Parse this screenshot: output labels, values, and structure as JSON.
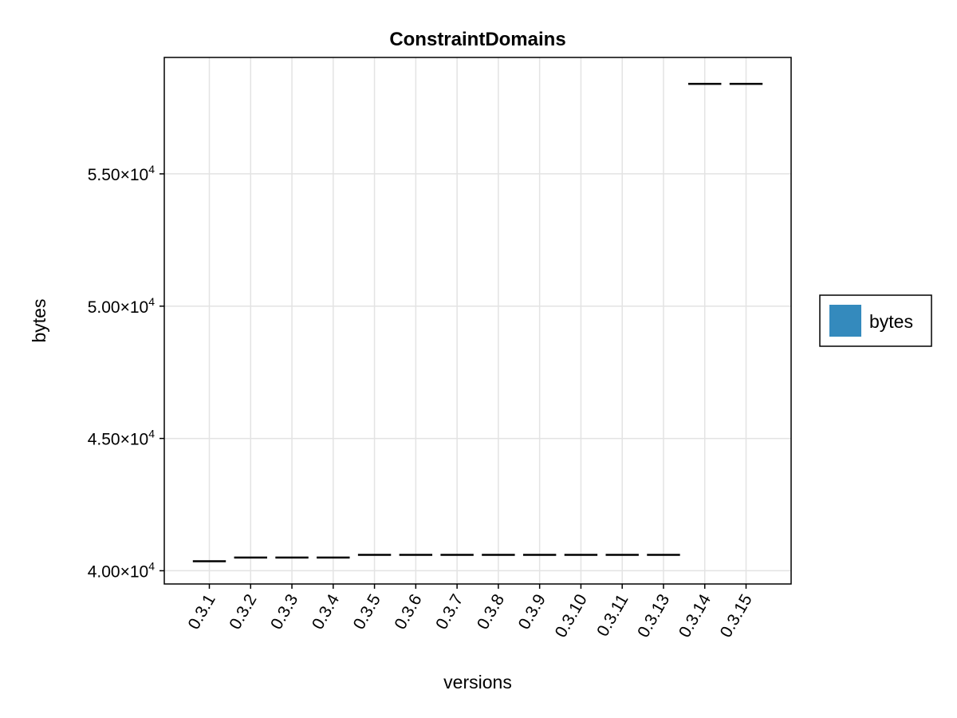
{
  "chart_data": {
    "type": "box",
    "title": "ConstraintDomains",
    "xlabel": "versions",
    "ylabel": "bytes",
    "categories": [
      "0.3.1",
      "0.3.2",
      "0.3.3",
      "0.3.4",
      "0.3.5",
      "0.3.6",
      "0.3.7",
      "0.3.8",
      "0.3.9",
      "0.3.10",
      "0.3.11",
      "0.3.13",
      "0.3.14",
      "0.3.15"
    ],
    "series": [
      {
        "name": "bytes",
        "color": "#348ABD",
        "values": [
          40360,
          40500,
          40500,
          40500,
          40600,
          40600,
          40600,
          40600,
          40600,
          40600,
          40600,
          40600,
          58400,
          58400
        ]
      }
    ],
    "y_ticks": [
      {
        "value": 40000,
        "mantissa": "4.00",
        "exponent": "4"
      },
      {
        "value": 45000,
        "mantissa": "4.50",
        "exponent": "4"
      },
      {
        "value": 50000,
        "mantissa": "5.00",
        "exponent": "4"
      },
      {
        "value": 55000,
        "mantissa": "5.50",
        "exponent": "4"
      }
    ],
    "ylim": [
      39500,
      59400
    ],
    "grid": true,
    "legend": {
      "position": "right",
      "label": "bytes"
    }
  }
}
